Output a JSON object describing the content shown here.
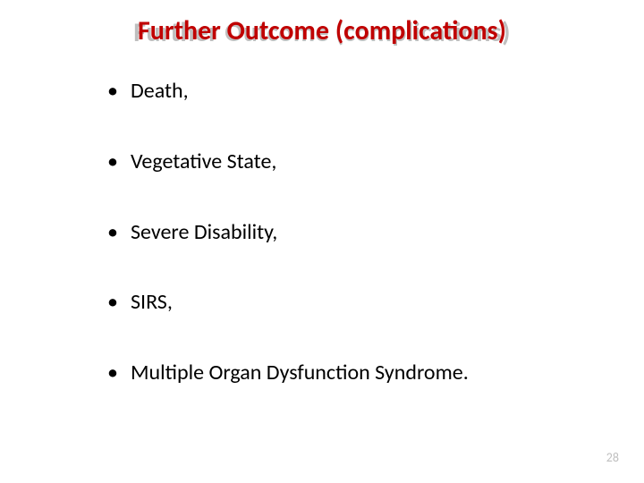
{
  "slide": {
    "title": "Further Outcome (complications)",
    "title_shadow": "Further Outcome (complications)",
    "title_color": "#c00000",
    "title_shadow_color": "#bfbfbf",
    "title_fontsize": 30,
    "title_fontweight": 700,
    "background_color": "#ffffff",
    "bullets": [
      "Death,",
      "Vegetative State,",
      "Severe Disability,",
      "SIRS,",
      "Multiple Organ Dysfunction Syndrome."
    ],
    "bullet_fontsize": 24,
    "bullet_color": "#000000",
    "bullet_marker": "•",
    "page_number": "28",
    "page_number_color": "#bfbfbf",
    "page_number_fontsize": 14
  }
}
